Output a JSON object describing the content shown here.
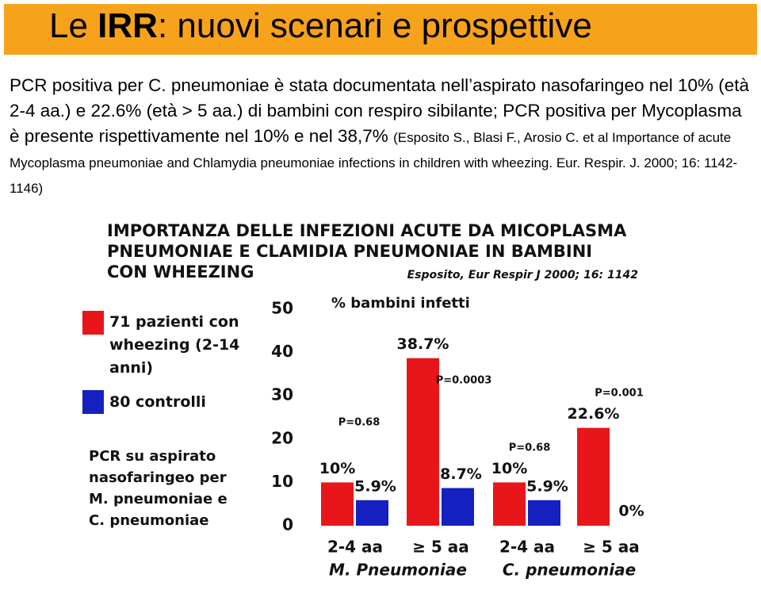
{
  "slide": {
    "title": [
      "Le ",
      "IRR",
      ": nuovi scenari e prospettive"
    ],
    "text": "PCR positiva per C. pneumoniae è stata documentata nell’aspirato nasofaringeo nel 10% (età 2-4 aa.) e 22.6% (età > 5 aa.) di bambini con respiro sibilante; PCR positiva per Mycoplasma è presente rispettivamente nel 10% e nel 38,7%",
    "citation": "(Esposito S., Blasi F., Arosio C. et al Importance of acute Mycoplasma pneumoniae and Chlamydia pneumoniae infections in children with wheezing. Eur. Respir. J. 2000; 16: 1142-1146)"
  },
  "chart_data": {
    "type": "bar",
    "title": [
      "IMPORTANZA DELLE INFEZIONI ACUTE DA MICOPLASMA",
      "PNEUMONIAE E CLAMIDIA PNEUMONIAE IN BAMBINI",
      "CON WHEEZING"
    ],
    "subtitle": "Esposito, Eur Respir J 2000; 16: 1142",
    "y_label": "% bambini infetti",
    "note": "PCR su aspirato nasofaringeo per M. pneumoniae e C. pneumoniae",
    "categories": [
      "2-4 aa",
      "≥ 5 aa",
      "2-4 aa",
      "≥ 5 aa"
    ],
    "groups": [
      "M. Pneumoniae",
      "C. pneumoniae"
    ],
    "series": [
      {
        "name": "71 pazienti con wheezing (2-14 anni)",
        "color": "#e8161a",
        "values": [
          10,
          38.7,
          10,
          22.6
        ],
        "value_labels": [
          "10%",
          "38.7%",
          "10%",
          "22.6%"
        ]
      },
      {
        "name": "80 controlli",
        "color": "#1420c0",
        "values": [
          5.9,
          8.7,
          5.9,
          0
        ],
        "value_labels": [
          "5.9%",
          "8.7%",
          "5.9%",
          "0%"
        ]
      }
    ],
    "annotations": [
      "P=0.68",
      "P=0.0003",
      "P=0.68",
      "P=0.001"
    ],
    "ylim": [
      0,
      50
    ],
    "yticks": [
      0,
      10,
      20,
      30,
      40,
      50
    ],
    "grid": false
  }
}
